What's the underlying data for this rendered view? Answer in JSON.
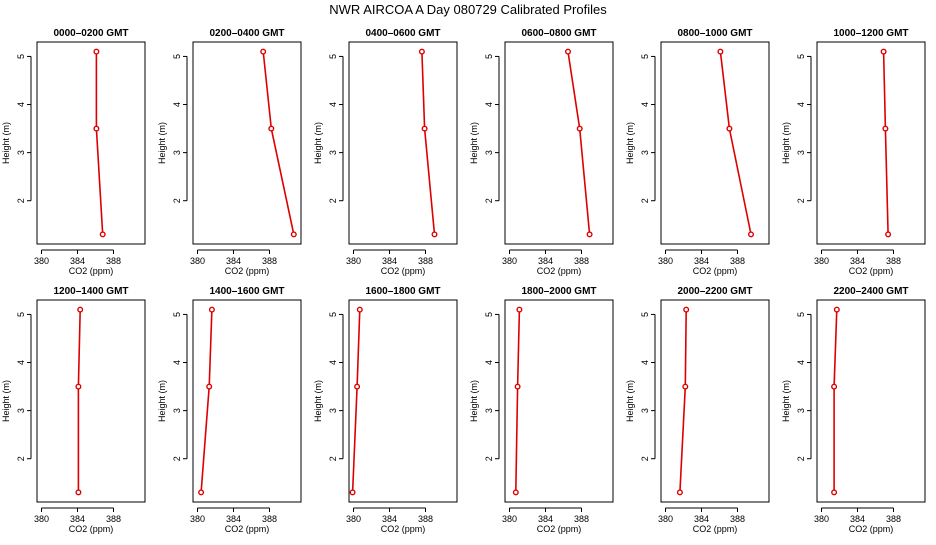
{
  "page": {
    "title": "NWR AIRCOA A  Day 080729  Calibrated Profiles"
  },
  "style": {
    "series_color": "#dd0000",
    "axis_color": "#000000"
  },
  "chart_data": [
    {
      "type": "line",
      "title": "0000–0200 GMT",
      "xlabel": "CO2 (ppm)",
      "ylabel": "Height (m)",
      "xlim": [
        379.5,
        391.5
      ],
      "ylim": [
        1.1,
        5.3
      ],
      "xticks": [
        380,
        384,
        388
      ],
      "yticks": [
        2,
        3,
        4,
        5
      ],
      "grid": false,
      "series": [
        {
          "x": [
            386.1,
            386.1,
            386.8
          ],
          "y": [
            5.1,
            3.5,
            1.3
          ]
        }
      ]
    },
    {
      "type": "line",
      "title": "0200–0400 GMT",
      "xlabel": "CO2 (ppm)",
      "ylabel": "Height (m)",
      "xlim": [
        379.5,
        391.5
      ],
      "ylim": [
        1.1,
        5.3
      ],
      "xticks": [
        380,
        384,
        388
      ],
      "yticks": [
        2,
        3,
        4,
        5
      ],
      "grid": false,
      "series": [
        {
          "x": [
            387.3,
            388.2,
            390.7
          ],
          "y": [
            5.1,
            3.5,
            1.3
          ]
        }
      ]
    },
    {
      "type": "line",
      "title": "0400–0600 GMT",
      "xlabel": "CO2 (ppm)",
      "ylabel": "Height (m)",
      "xlim": [
        379.5,
        391.5
      ],
      "ylim": [
        1.1,
        5.3
      ],
      "xticks": [
        380,
        384,
        388
      ],
      "yticks": [
        2,
        3,
        4,
        5
      ],
      "grid": false,
      "series": [
        {
          "x": [
            387.6,
            387.9,
            389.0
          ],
          "y": [
            5.1,
            3.5,
            1.3
          ]
        }
      ]
    },
    {
      "type": "line",
      "title": "0600–0800 GMT",
      "xlabel": "CO2 (ppm)",
      "ylabel": "Height (m)",
      "xlim": [
        379.5,
        391.5
      ],
      "ylim": [
        1.1,
        5.3
      ],
      "xticks": [
        380,
        384,
        388
      ],
      "yticks": [
        2,
        3,
        4,
        5
      ],
      "grid": false,
      "series": [
        {
          "x": [
            386.5,
            387.8,
            388.9
          ],
          "y": [
            5.1,
            3.5,
            1.3
          ]
        }
      ]
    },
    {
      "type": "line",
      "title": "0800–1000 GMT",
      "xlabel": "CO2 (ppm)",
      "ylabel": "Height (m)",
      "xlim": [
        379.5,
        391.5
      ],
      "ylim": [
        1.1,
        5.3
      ],
      "xticks": [
        380,
        384,
        388
      ],
      "yticks": [
        2,
        3,
        4,
        5
      ],
      "grid": false,
      "series": [
        {
          "x": [
            386.1,
            387.1,
            389.5
          ],
          "y": [
            5.1,
            3.5,
            1.3
          ]
        }
      ]
    },
    {
      "type": "line",
      "title": "1000–1200 GMT",
      "xlabel": "CO2 (ppm)",
      "ylabel": "Height (m)",
      "xlim": [
        379.5,
        391.5
      ],
      "ylim": [
        1.1,
        5.3
      ],
      "xticks": [
        380,
        384,
        388
      ],
      "yticks": [
        2,
        3,
        4,
        5
      ],
      "grid": false,
      "series": [
        {
          "x": [
            386.9,
            387.1,
            387.4
          ],
          "y": [
            5.1,
            3.5,
            1.3
          ]
        }
      ]
    },
    {
      "type": "line",
      "title": "1200–1400 GMT",
      "xlabel": "CO2 (ppm)",
      "ylabel": "Height (m)",
      "xlim": [
        379.5,
        391.5
      ],
      "ylim": [
        1.1,
        5.3
      ],
      "xticks": [
        380,
        384,
        388
      ],
      "yticks": [
        2,
        3,
        4,
        5
      ],
      "grid": false,
      "series": [
        {
          "x": [
            384.3,
            384.1,
            384.1
          ],
          "y": [
            5.1,
            3.5,
            1.3
          ]
        }
      ]
    },
    {
      "type": "line",
      "title": "1400–1600 GMT",
      "xlabel": "CO2 (ppm)",
      "ylabel": "Height (m)",
      "xlim": [
        379.5,
        391.5
      ],
      "ylim": [
        1.1,
        5.3
      ],
      "xticks": [
        380,
        384,
        388
      ],
      "yticks": [
        2,
        3,
        4,
        5
      ],
      "grid": false,
      "series": [
        {
          "x": [
            381.6,
            381.3,
            380.4
          ],
          "y": [
            5.1,
            3.5,
            1.3
          ]
        }
      ]
    },
    {
      "type": "line",
      "title": "1600–1800 GMT",
      "xlabel": "CO2 (ppm)",
      "ylabel": "Height (m)",
      "xlim": [
        379.5,
        391.5
      ],
      "ylim": [
        1.1,
        5.3
      ],
      "xticks": [
        380,
        384,
        388
      ],
      "yticks": [
        2,
        3,
        4,
        5
      ],
      "grid": false,
      "series": [
        {
          "x": [
            380.7,
            380.4,
            379.9
          ],
          "y": [
            5.1,
            3.5,
            1.3
          ]
        }
      ]
    },
    {
      "type": "line",
      "title": "1800–2000 GMT",
      "xlabel": "CO2 (ppm)",
      "ylabel": "Height (m)",
      "xlim": [
        379.5,
        391.5
      ],
      "ylim": [
        1.1,
        5.3
      ],
      "xticks": [
        380,
        384,
        388
      ],
      "yticks": [
        2,
        3,
        4,
        5
      ],
      "grid": false,
      "series": [
        {
          "x": [
            381.1,
            380.9,
            380.7
          ],
          "y": [
            5.1,
            3.5,
            1.3
          ]
        }
      ]
    },
    {
      "type": "line",
      "title": "2000–2200 GMT",
      "xlabel": "CO2 (ppm)",
      "ylabel": "Height (m)",
      "xlim": [
        379.5,
        391.5
      ],
      "ylim": [
        1.1,
        5.3
      ],
      "xticks": [
        380,
        384,
        388
      ],
      "yticks": [
        2,
        3,
        4,
        5
      ],
      "grid": false,
      "series": [
        {
          "x": [
            382.3,
            382.2,
            381.6
          ],
          "y": [
            5.1,
            3.5,
            1.3
          ]
        }
      ]
    },
    {
      "type": "line",
      "title": "2200–2400 GMT",
      "xlabel": "CO2 (ppm)",
      "ylabel": "Height (m)",
      "xlim": [
        379.5,
        391.5
      ],
      "ylim": [
        1.1,
        5.3
      ],
      "xticks": [
        380,
        384,
        388
      ],
      "yticks": [
        2,
        3,
        4,
        5
      ],
      "grid": false,
      "series": [
        {
          "x": [
            381.7,
            381.4,
            381.4
          ],
          "y": [
            5.1,
            3.5,
            1.3
          ]
        }
      ]
    }
  ]
}
